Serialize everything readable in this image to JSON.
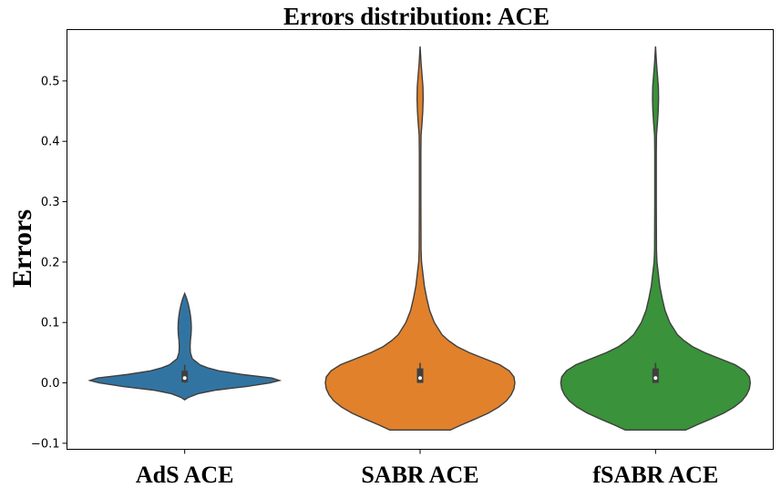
{
  "chart_data": {
    "type": "violin",
    "title": "Errors distribution: ACE",
    "xlabel": "",
    "ylabel": "Errors",
    "categories": [
      "AdS ACE",
      "SABR ACE",
      "fSABR ACE"
    ],
    "ylim": [
      -0.11,
      0.585
    ],
    "yticks": [
      -0.1,
      0.0,
      0.1,
      0.2,
      0.3,
      0.4,
      0.5
    ],
    "ytick_labels": [
      "−0.1",
      "0.0",
      "0.1",
      "0.2",
      "0.3",
      "0.4",
      "0.5"
    ],
    "grid": false,
    "legend": "none",
    "colors": [
      "#3274a1",
      "#e1812c",
      "#3a923a"
    ],
    "series": [
      {
        "category": "AdS ACE",
        "min": -0.028,
        "max": 0.148,
        "q1": 0.001,
        "median": 0.008,
        "q3": 0.02,
        "whisker_low": 0.0,
        "whisker_high": 0.03,
        "density": [
          [
            -0.028,
            0
          ],
          [
            -0.024,
            0.04
          ],
          [
            -0.018,
            0.14
          ],
          [
            -0.012,
            0.33
          ],
          [
            -0.006,
            0.65
          ],
          [
            0.0,
            0.9
          ],
          [
            0.004,
            1.0
          ],
          [
            0.008,
            0.92
          ],
          [
            0.014,
            0.6
          ],
          [
            0.02,
            0.36
          ],
          [
            0.025,
            0.24
          ],
          [
            0.03,
            0.16
          ],
          [
            0.035,
            0.12
          ],
          [
            0.04,
            0.08
          ],
          [
            0.05,
            0.06
          ],
          [
            0.06,
            0.057
          ],
          [
            0.07,
            0.06
          ],
          [
            0.08,
            0.067
          ],
          [
            0.09,
            0.07
          ],
          [
            0.1,
            0.068
          ],
          [
            0.11,
            0.062
          ],
          [
            0.12,
            0.052
          ],
          [
            0.13,
            0.038
          ],
          [
            0.14,
            0.02
          ],
          [
            0.148,
            0
          ]
        ]
      },
      {
        "category": "SABR ACE",
        "min": -0.078,
        "max": 0.557,
        "q1": 0.0,
        "median": 0.008,
        "q3": 0.024,
        "whisker_low": 0.0,
        "whisker_high": 0.033,
        "density": [
          [
            -0.078,
            0.32
          ],
          [
            -0.07,
            0.43
          ],
          [
            -0.06,
            0.58
          ],
          [
            -0.05,
            0.72
          ],
          [
            -0.04,
            0.83
          ],
          [
            -0.03,
            0.91
          ],
          [
            -0.02,
            0.96
          ],
          [
            -0.01,
            0.99
          ],
          [
            0.0,
            1.0
          ],
          [
            0.01,
            0.99
          ],
          [
            0.02,
            0.94
          ],
          [
            0.03,
            0.84
          ],
          [
            0.04,
            0.68
          ],
          [
            0.05,
            0.52
          ],
          [
            0.06,
            0.39
          ],
          [
            0.07,
            0.3
          ],
          [
            0.08,
            0.23
          ],
          [
            0.1,
            0.15
          ],
          [
            0.12,
            0.1
          ],
          [
            0.14,
            0.07
          ],
          [
            0.16,
            0.045
          ],
          [
            0.18,
            0.03
          ],
          [
            0.2,
            0.015
          ],
          [
            0.22,
            0.01
          ],
          [
            0.3,
            0.008
          ],
          [
            0.38,
            0.008
          ],
          [
            0.41,
            0.01
          ],
          [
            0.43,
            0.02
          ],
          [
            0.45,
            0.028
          ],
          [
            0.47,
            0.032
          ],
          [
            0.49,
            0.03
          ],
          [
            0.51,
            0.02
          ],
          [
            0.53,
            0.01
          ],
          [
            0.557,
            0.0
          ]
        ]
      },
      {
        "category": "fSABR ACE",
        "min": -0.078,
        "max": 0.557,
        "q1": 0.0,
        "median": 0.008,
        "q3": 0.024,
        "whisker_low": 0.0,
        "whisker_high": 0.033,
        "density": [
          [
            -0.078,
            0.32
          ],
          [
            -0.07,
            0.43
          ],
          [
            -0.06,
            0.58
          ],
          [
            -0.05,
            0.72
          ],
          [
            -0.04,
            0.83
          ],
          [
            -0.03,
            0.91
          ],
          [
            -0.02,
            0.96
          ],
          [
            -0.01,
            0.99
          ],
          [
            0.0,
            1.0
          ],
          [
            0.01,
            0.99
          ],
          [
            0.02,
            0.94
          ],
          [
            0.03,
            0.84
          ],
          [
            0.04,
            0.68
          ],
          [
            0.05,
            0.52
          ],
          [
            0.06,
            0.39
          ],
          [
            0.07,
            0.3
          ],
          [
            0.08,
            0.23
          ],
          [
            0.1,
            0.15
          ],
          [
            0.12,
            0.1
          ],
          [
            0.14,
            0.07
          ],
          [
            0.16,
            0.045
          ],
          [
            0.18,
            0.03
          ],
          [
            0.2,
            0.015
          ],
          [
            0.22,
            0.01
          ],
          [
            0.3,
            0.008
          ],
          [
            0.38,
            0.008
          ],
          [
            0.41,
            0.01
          ],
          [
            0.43,
            0.02
          ],
          [
            0.45,
            0.028
          ],
          [
            0.47,
            0.032
          ],
          [
            0.49,
            0.03
          ],
          [
            0.51,
            0.02
          ],
          [
            0.53,
            0.01
          ],
          [
            0.557,
            0.0
          ]
        ]
      }
    ]
  }
}
